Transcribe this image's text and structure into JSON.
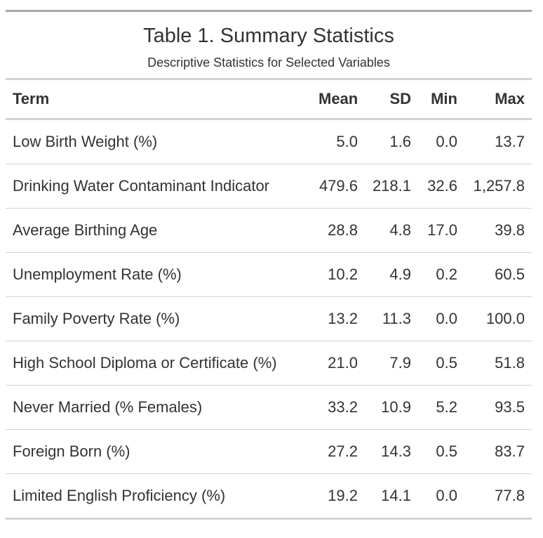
{
  "table": {
    "title": "Table 1. Summary Statistics",
    "subtitle": "Descriptive Statistics for Selected Variables",
    "columns": [
      "Term",
      "Mean",
      "SD",
      "Min",
      "Max"
    ],
    "rows": [
      [
        "Low Birth Weight (%)",
        "5.0",
        "1.6",
        "0.0",
        "13.7"
      ],
      [
        "Drinking Water Contaminant Indicator",
        "479.6",
        "218.1",
        "32.6",
        "1,257.8"
      ],
      [
        "Average Birthing Age",
        "28.8",
        "4.8",
        "17.0",
        "39.8"
      ],
      [
        "Unemployment Rate (%)",
        "10.2",
        "4.9",
        "0.2",
        "60.5"
      ],
      [
        "Family Poverty Rate (%)",
        "13.2",
        "11.3",
        "0.0",
        "100.0"
      ],
      [
        "High School Diploma or Certificate (%)",
        "21.0",
        "7.9",
        "0.5",
        "51.8"
      ],
      [
        "Never Married (% Females)",
        "33.2",
        "10.9",
        "5.2",
        "93.5"
      ],
      [
        "Foreign Born (%)",
        "27.2",
        "14.3",
        "0.5",
        "83.7"
      ],
      [
        "Limited English Proficiency (%)",
        "19.2",
        "14.1",
        "0.0",
        "77.8"
      ]
    ]
  }
}
